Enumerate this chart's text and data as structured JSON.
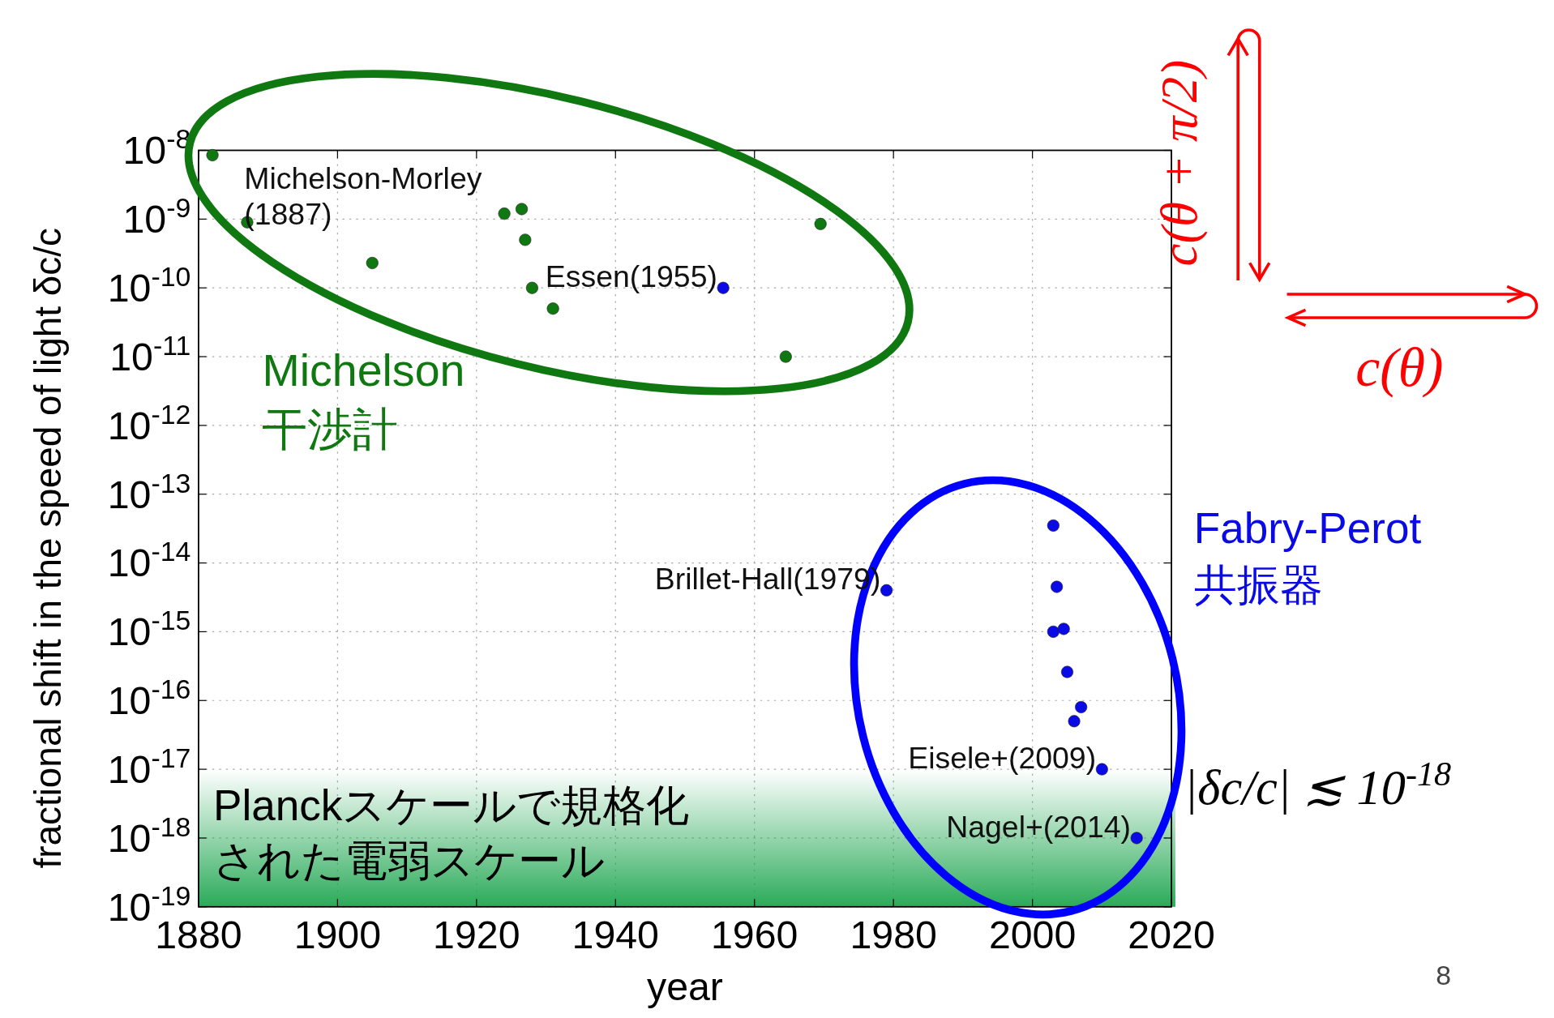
{
  "chart_data": {
    "type": "scatter",
    "xlabel": "year",
    "ylabel": "fractional shift in the speed of light δc/c",
    "xlim": [
      1880,
      2020
    ],
    "xticks": [
      1880,
      1900,
      1920,
      1940,
      1960,
      1980,
      2000,
      2020
    ],
    "ylim": [
      1e-19,
      1e-08
    ],
    "log": "y",
    "yticks": [
      {
        "value": 1e-08,
        "label": "10$^{-8}$"
      },
      {
        "value": 1e-09,
        "label": "10$^{-9}$"
      },
      {
        "value": 1e-10,
        "label": "10$^{-10}$"
      },
      {
        "value": 1e-11,
        "label": "10$^{-11}$"
      },
      {
        "value": 1e-12,
        "label": "10$^{-12}$"
      },
      {
        "value": 1e-13,
        "label": "10$^{-13}$"
      },
      {
        "value": 1e-14,
        "label": "10$^{-14}$"
      },
      {
        "value": 1e-15,
        "label": "10$^{-15}$"
      },
      {
        "value": 1e-16,
        "label": "10$^{-16}$"
      },
      {
        "value": 1e-17,
        "label": "10$^{-17}$"
      },
      {
        "value": 1e-18,
        "label": "10$^{-18}$"
      },
      {
        "value": 1e-19,
        "label": "10$^{-19}$"
      }
    ],
    "grid": true,
    "marker": "circle",
    "series": [
      {
        "color": "#107810",
        "x": [
          1882,
          1887,
          1905,
          1924,
          1926.5,
          1927,
          1928,
          1931,
          1964.5,
          1969.5
        ],
        "values": [
          8.5e-09,
          9e-10,
          2.3e-10,
          1.2e-09,
          1.4e-09,
          5e-10,
          1e-10,
          5e-11,
          1e-11,
          8.5e-10
        ]
      },
      {
        "color": "#0a0ae6",
        "x": [
          1955.5,
          1979,
          2003,
          2003.5,
          2003,
          2004.5,
          2005,
          2007,
          2006,
          2010,
          2015
        ],
        "values": [
          1e-10,
          4e-15,
          3.5e-14,
          4.5e-15,
          1e-15,
          1.1e-15,
          2.6e-16,
          8e-17,
          5e-17,
          1e-17,
          1e-18
        ]
      }
    ],
    "bands": [
      {
        "axis": "y",
        "from": 1e-19,
        "to": 1e-17,
        "color": "#1fa650",
        "label": "Planckスケールで規格化された電弱スケール"
      }
    ],
    "annotations": [
      {
        "text": "Michelson-Morley\n(1887)",
        "x": 1887,
        "y": 9e-10
      },
      {
        "text": "Essen(1955)",
        "x": 1955.5,
        "y": 1e-10
      },
      {
        "text": "Brillet-Hall(1979)",
        "x": 1979,
        "y": 4e-15
      },
      {
        "text": "Eisele+(2009)",
        "x": 2010,
        "y": 1e-17
      },
      {
        "text": "Nagel+(2014)",
        "x": 2015,
        "y": 1e-18
      },
      "Michelson\n干渉計",
      "Fabry-Perot\n共振器",
      "c(θ + π/2)",
      "c(θ)",
      "|δc/c| ≲ 10$^{-18}$",
      "8"
    ]
  }
}
